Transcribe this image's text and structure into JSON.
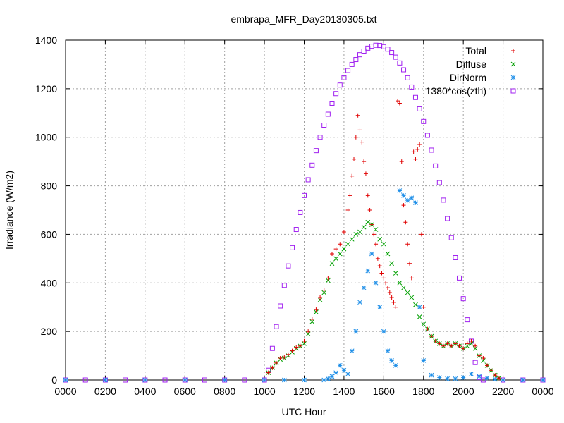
{
  "chart_data": {
    "type": "scatter",
    "title": "embrapa_MFR_Day20130305.txt",
    "xlabel": "UTC Hour",
    "ylabel": "Irradiance (W/m2)",
    "xlim": [
      0,
      24
    ],
    "ylim": [
      0,
      1400
    ],
    "x_ticks": [
      0,
      2,
      4,
      6,
      8,
      10,
      12,
      14,
      16,
      18,
      20,
      22,
      24
    ],
    "x_tick_labels": [
      "0000",
      "0200",
      "0400",
      "0600",
      "0800",
      "1000",
      "1200",
      "1400",
      "1600",
      "1800",
      "2000",
      "2200",
      "0000"
    ],
    "y_ticks": [
      0,
      200,
      400,
      600,
      800,
      1000,
      1200,
      1400
    ],
    "y_tick_labels": [
      "0",
      "200",
      "400",
      "600",
      "800",
      "1000",
      "1200",
      "1400"
    ],
    "grid": true,
    "legend_position": "top-right",
    "series": [
      {
        "name": "Total",
        "marker": "plus",
        "color": "#e00000",
        "points": [
          [
            10.2,
            30
          ],
          [
            10.4,
            50
          ],
          [
            10.6,
            70
          ],
          [
            10.8,
            90
          ],
          [
            11.0,
            95
          ],
          [
            11.2,
            105
          ],
          [
            11.4,
            120
          ],
          [
            11.6,
            135
          ],
          [
            11.8,
            140
          ],
          [
            12.0,
            160
          ],
          [
            12.2,
            200
          ],
          [
            12.4,
            250
          ],
          [
            12.6,
            290
          ],
          [
            12.8,
            340
          ],
          [
            13.0,
            370
          ],
          [
            13.2,
            420
          ],
          [
            13.4,
            520
          ],
          [
            13.6,
            540
          ],
          [
            13.8,
            560
          ],
          [
            14.0,
            610
          ],
          [
            14.2,
            700
          ],
          [
            14.3,
            760
          ],
          [
            14.4,
            840
          ],
          [
            14.5,
            910
          ],
          [
            14.6,
            1000
          ],
          [
            14.7,
            1090
          ],
          [
            14.8,
            1030
          ],
          [
            14.9,
            980
          ],
          [
            15.0,
            900
          ],
          [
            15.1,
            850
          ],
          [
            15.2,
            760
          ],
          [
            15.3,
            700
          ],
          [
            15.4,
            640
          ],
          [
            15.5,
            600
          ],
          [
            15.6,
            560
          ],
          [
            15.7,
            500
          ],
          [
            15.8,
            470
          ],
          [
            15.9,
            440
          ],
          [
            16.0,
            420
          ],
          [
            16.1,
            400
          ],
          [
            16.2,
            380
          ],
          [
            16.3,
            360
          ],
          [
            16.4,
            340
          ],
          [
            16.5,
            320
          ],
          [
            16.6,
            300
          ],
          [
            16.7,
            1150
          ],
          [
            16.8,
            1140
          ],
          [
            16.9,
            900
          ],
          [
            17.0,
            720
          ],
          [
            17.1,
            650
          ],
          [
            17.2,
            560
          ],
          [
            17.3,
            480
          ],
          [
            17.4,
            420
          ],
          [
            17.5,
            940
          ],
          [
            17.6,
            910
          ],
          [
            17.7,
            950
          ],
          [
            17.8,
            970
          ],
          [
            17.9,
            600
          ],
          [
            18.0,
            300
          ],
          [
            18.2,
            210
          ],
          [
            18.4,
            180
          ],
          [
            18.6,
            160
          ],
          [
            18.8,
            150
          ],
          [
            19.0,
            140
          ],
          [
            19.2,
            150
          ],
          [
            19.4,
            140
          ],
          [
            19.6,
            150
          ],
          [
            19.8,
            140
          ],
          [
            20.0,
            130
          ],
          [
            20.2,
            150
          ],
          [
            20.4,
            160
          ],
          [
            20.6,
            140
          ],
          [
            20.8,
            100
          ],
          [
            21.0,
            90
          ],
          [
            21.2,
            60
          ],
          [
            21.4,
            40
          ],
          [
            21.6,
            20
          ],
          [
            21.8,
            8
          ]
        ]
      },
      {
        "name": "Diffuse",
        "marker": "cross",
        "color": "#00a000",
        "points": [
          [
            10.2,
            30
          ],
          [
            10.4,
            50
          ],
          [
            10.6,
            70
          ],
          [
            10.8,
            85
          ],
          [
            11.0,
            90
          ],
          [
            11.2,
            100
          ],
          [
            11.4,
            115
          ],
          [
            11.6,
            130
          ],
          [
            11.8,
            140
          ],
          [
            12.0,
            150
          ],
          [
            12.2,
            190
          ],
          [
            12.4,
            240
          ],
          [
            12.6,
            280
          ],
          [
            12.8,
            330
          ],
          [
            13.0,
            360
          ],
          [
            13.2,
            410
          ],
          [
            13.4,
            480
          ],
          [
            13.6,
            500
          ],
          [
            13.8,
            520
          ],
          [
            14.0,
            540
          ],
          [
            14.2,
            560
          ],
          [
            14.4,
            580
          ],
          [
            14.6,
            600
          ],
          [
            14.8,
            610
          ],
          [
            15.0,
            630
          ],
          [
            15.2,
            650
          ],
          [
            15.4,
            640
          ],
          [
            15.6,
            620
          ],
          [
            15.8,
            580
          ],
          [
            16.0,
            560
          ],
          [
            16.2,
            520
          ],
          [
            16.4,
            480
          ],
          [
            16.6,
            440
          ],
          [
            16.8,
            400
          ],
          [
            17.0,
            380
          ],
          [
            17.2,
            360
          ],
          [
            17.4,
            340
          ],
          [
            17.6,
            310
          ],
          [
            17.8,
            260
          ],
          [
            18.0,
            230
          ],
          [
            18.2,
            210
          ],
          [
            18.4,
            180
          ],
          [
            18.6,
            160
          ],
          [
            18.8,
            150
          ],
          [
            19.0,
            140
          ],
          [
            19.2,
            150
          ],
          [
            19.4,
            140
          ],
          [
            19.6,
            150
          ],
          [
            19.8,
            140
          ],
          [
            20.0,
            130
          ],
          [
            20.2,
            140
          ],
          [
            20.4,
            150
          ],
          [
            20.6,
            130
          ],
          [
            20.8,
            100
          ],
          [
            21.0,
            80
          ],
          [
            21.2,
            60
          ],
          [
            21.4,
            40
          ],
          [
            21.6,
            20
          ],
          [
            21.8,
            8
          ]
        ]
      },
      {
        "name": "DirNorm",
        "marker": "star",
        "color": "#1f8fe8",
        "points": [
          [
            0.0,
            0
          ],
          [
            2.0,
            0
          ],
          [
            4.0,
            0
          ],
          [
            6.0,
            0
          ],
          [
            8.0,
            0
          ],
          [
            10.0,
            0
          ],
          [
            11.0,
            0
          ],
          [
            12.0,
            0
          ],
          [
            13.0,
            0
          ],
          [
            13.2,
            5
          ],
          [
            13.4,
            15
          ],
          [
            13.6,
            30
          ],
          [
            13.8,
            60
          ],
          [
            14.0,
            40
          ],
          [
            14.2,
            25
          ],
          [
            14.4,
            120
          ],
          [
            14.6,
            200
          ],
          [
            14.8,
            320
          ],
          [
            15.0,
            380
          ],
          [
            15.2,
            450
          ],
          [
            15.4,
            520
          ],
          [
            15.6,
            400
          ],
          [
            15.8,
            300
          ],
          [
            16.0,
            200
          ],
          [
            16.2,
            120
          ],
          [
            16.4,
            80
          ],
          [
            16.6,
            60
          ],
          [
            16.8,
            780
          ],
          [
            17.0,
            760
          ],
          [
            17.2,
            740
          ],
          [
            17.4,
            750
          ],
          [
            17.6,
            730
          ],
          [
            17.8,
            300
          ],
          [
            18.0,
            80
          ],
          [
            18.4,
            20
          ],
          [
            18.8,
            10
          ],
          [
            19.2,
            5
          ],
          [
            19.6,
            5
          ],
          [
            20.0,
            10
          ],
          [
            20.4,
            25
          ],
          [
            20.8,
            15
          ],
          [
            21.2,
            8
          ],
          [
            21.6,
            3
          ],
          [
            22.0,
            0
          ],
          [
            23.0,
            0
          ],
          [
            24.0,
            0
          ]
        ]
      },
      {
        "name": "1380*cos(zth)",
        "marker": "square",
        "color": "#a020f0",
        "points": [
          [
            0.0,
            0
          ],
          [
            1.0,
            0
          ],
          [
            2.0,
            0
          ],
          [
            3.0,
            0
          ],
          [
            4.0,
            0
          ],
          [
            5.0,
            0
          ],
          [
            6.0,
            0
          ],
          [
            7.0,
            0
          ],
          [
            8.0,
            0
          ],
          [
            9.0,
            0
          ],
          [
            10.0,
            0
          ],
          [
            10.2,
            40
          ],
          [
            10.4,
            130
          ],
          [
            10.6,
            220
          ],
          [
            10.8,
            305
          ],
          [
            11.0,
            390
          ],
          [
            11.2,
            470
          ],
          [
            11.4,
            545
          ],
          [
            11.6,
            620
          ],
          [
            11.8,
            690
          ],
          [
            12.0,
            760
          ],
          [
            12.2,
            825
          ],
          [
            12.4,
            885
          ],
          [
            12.6,
            945
          ],
          [
            12.8,
            1000
          ],
          [
            13.0,
            1050
          ],
          [
            13.2,
            1095
          ],
          [
            13.4,
            1140
          ],
          [
            13.6,
            1180
          ],
          [
            13.8,
            1215
          ],
          [
            14.0,
            1245
          ],
          [
            14.2,
            1275
          ],
          [
            14.4,
            1300
          ],
          [
            14.6,
            1320
          ],
          [
            14.8,
            1340
          ],
          [
            15.0,
            1355
          ],
          [
            15.2,
            1367
          ],
          [
            15.4,
            1375
          ],
          [
            15.6,
            1379
          ],
          [
            15.8,
            1378
          ],
          [
            16.0,
            1373
          ],
          [
            16.2,
            1363
          ],
          [
            16.4,
            1349
          ],
          [
            16.6,
            1330
          ],
          [
            16.8,
            1306
          ],
          [
            17.0,
            1278
          ],
          [
            17.2,
            1245
          ],
          [
            17.4,
            1207
          ],
          [
            17.6,
            1164
          ],
          [
            17.8,
            1117
          ],
          [
            18.0,
            1065
          ],
          [
            18.2,
            1008
          ],
          [
            18.4,
            947
          ],
          [
            18.6,
            882
          ],
          [
            18.8,
            813
          ],
          [
            19.0,
            741
          ],
          [
            19.2,
            665
          ],
          [
            19.4,
            586
          ],
          [
            19.6,
            504
          ],
          [
            19.8,
            420
          ],
          [
            20.0,
            335
          ],
          [
            20.2,
            248
          ],
          [
            20.4,
            160
          ],
          [
            20.6,
            72
          ],
          [
            20.8,
            10
          ],
          [
            21.0,
            0
          ],
          [
            22.0,
            0
          ],
          [
            23.0,
            0
          ],
          [
            24.0,
            0
          ]
        ]
      }
    ]
  }
}
